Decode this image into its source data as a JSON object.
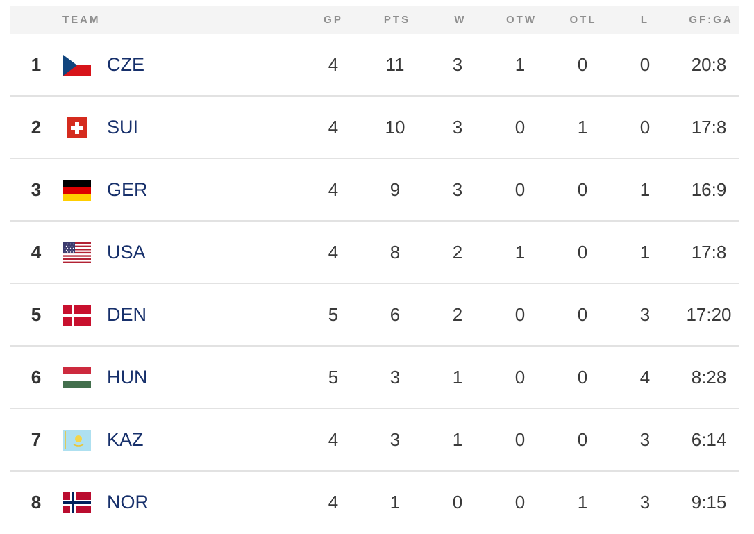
{
  "headers": {
    "team": "TEAM",
    "gp": "GP",
    "pts": "PTS",
    "w": "W",
    "otw": "OTW",
    "otl": "OTL",
    "l": "L",
    "gfga": "GF:GA"
  },
  "rows": [
    {
      "rank": "1",
      "team": "CZE",
      "flag": "czech-flag-icon",
      "gp": "4",
      "pts": "11",
      "w": "3",
      "otw": "1",
      "otl": "0",
      "l": "0",
      "gfga": "20:8"
    },
    {
      "rank": "2",
      "team": "SUI",
      "flag": "swiss-flag-icon",
      "gp": "4",
      "pts": "10",
      "w": "3",
      "otw": "0",
      "otl": "1",
      "l": "0",
      "gfga": "17:8"
    },
    {
      "rank": "3",
      "team": "GER",
      "flag": "german-flag-icon",
      "gp": "4",
      "pts": "9",
      "w": "3",
      "otw": "0",
      "otl": "0",
      "l": "1",
      "gfga": "16:9"
    },
    {
      "rank": "4",
      "team": "USA",
      "flag": "us-flag-icon",
      "gp": "4",
      "pts": "8",
      "w": "2",
      "otw": "1",
      "otl": "0",
      "l": "1",
      "gfga": "17:8"
    },
    {
      "rank": "5",
      "team": "DEN",
      "flag": "danish-flag-icon",
      "gp": "5",
      "pts": "6",
      "w": "2",
      "otw": "0",
      "otl": "0",
      "l": "3",
      "gfga": "17:20"
    },
    {
      "rank": "6",
      "team": "HUN",
      "flag": "hungarian-flag-icon",
      "gp": "5",
      "pts": "3",
      "w": "1",
      "otw": "0",
      "otl": "0",
      "l": "4",
      "gfga": "8:28"
    },
    {
      "rank": "7",
      "team": "KAZ",
      "flag": "kazakh-flag-icon",
      "gp": "4",
      "pts": "3",
      "w": "1",
      "otw": "0",
      "otl": "0",
      "l": "3",
      "gfga": "6:14"
    },
    {
      "rank": "8",
      "team": "NOR",
      "flag": "norwegian-flag-icon",
      "gp": "4",
      "pts": "1",
      "w": "0",
      "otw": "0",
      "otl": "1",
      "l": "3",
      "gfga": "9:15"
    }
  ],
  "colors": {
    "header_bg": "#f4f4f4",
    "header_text": "#8e8e8e",
    "team_text": "#17306b",
    "divider": "#e2e2e2"
  }
}
